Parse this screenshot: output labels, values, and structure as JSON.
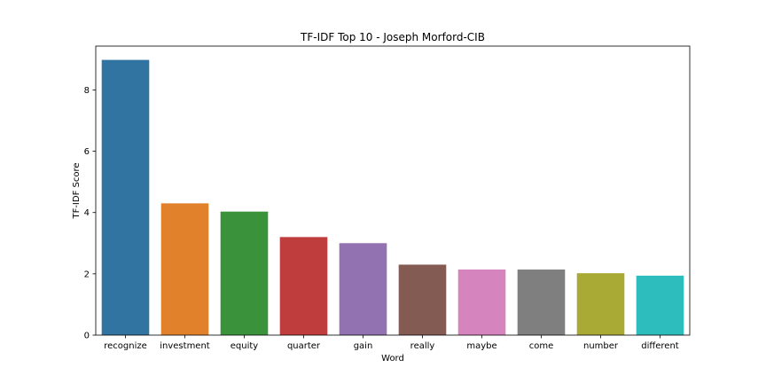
{
  "chart_data": {
    "type": "bar",
    "title": "TF-IDF Top 10 - Joseph Morford-CIB",
    "xlabel": "Word",
    "ylabel": "TF-IDF Score",
    "categories": [
      "recognize",
      "investment",
      "equity",
      "quarter",
      "gain",
      "really",
      "maybe",
      "come",
      "number",
      "different"
    ],
    "values": [
      8.98,
      4.3,
      4.03,
      3.2,
      3.0,
      2.3,
      2.14,
      2.14,
      2.02,
      1.94
    ],
    "colors": [
      "#3274a1",
      "#e1812c",
      "#3a923a",
      "#c03d3e",
      "#9372b2",
      "#845b53",
      "#d684bd",
      "#7f7f7f",
      "#a9aa35",
      "#2ebdbd"
    ],
    "ylim": [
      0,
      9.43
    ],
    "yticks": [
      0,
      2,
      4,
      6,
      8
    ],
    "grid": false,
    "legend": "none"
  }
}
